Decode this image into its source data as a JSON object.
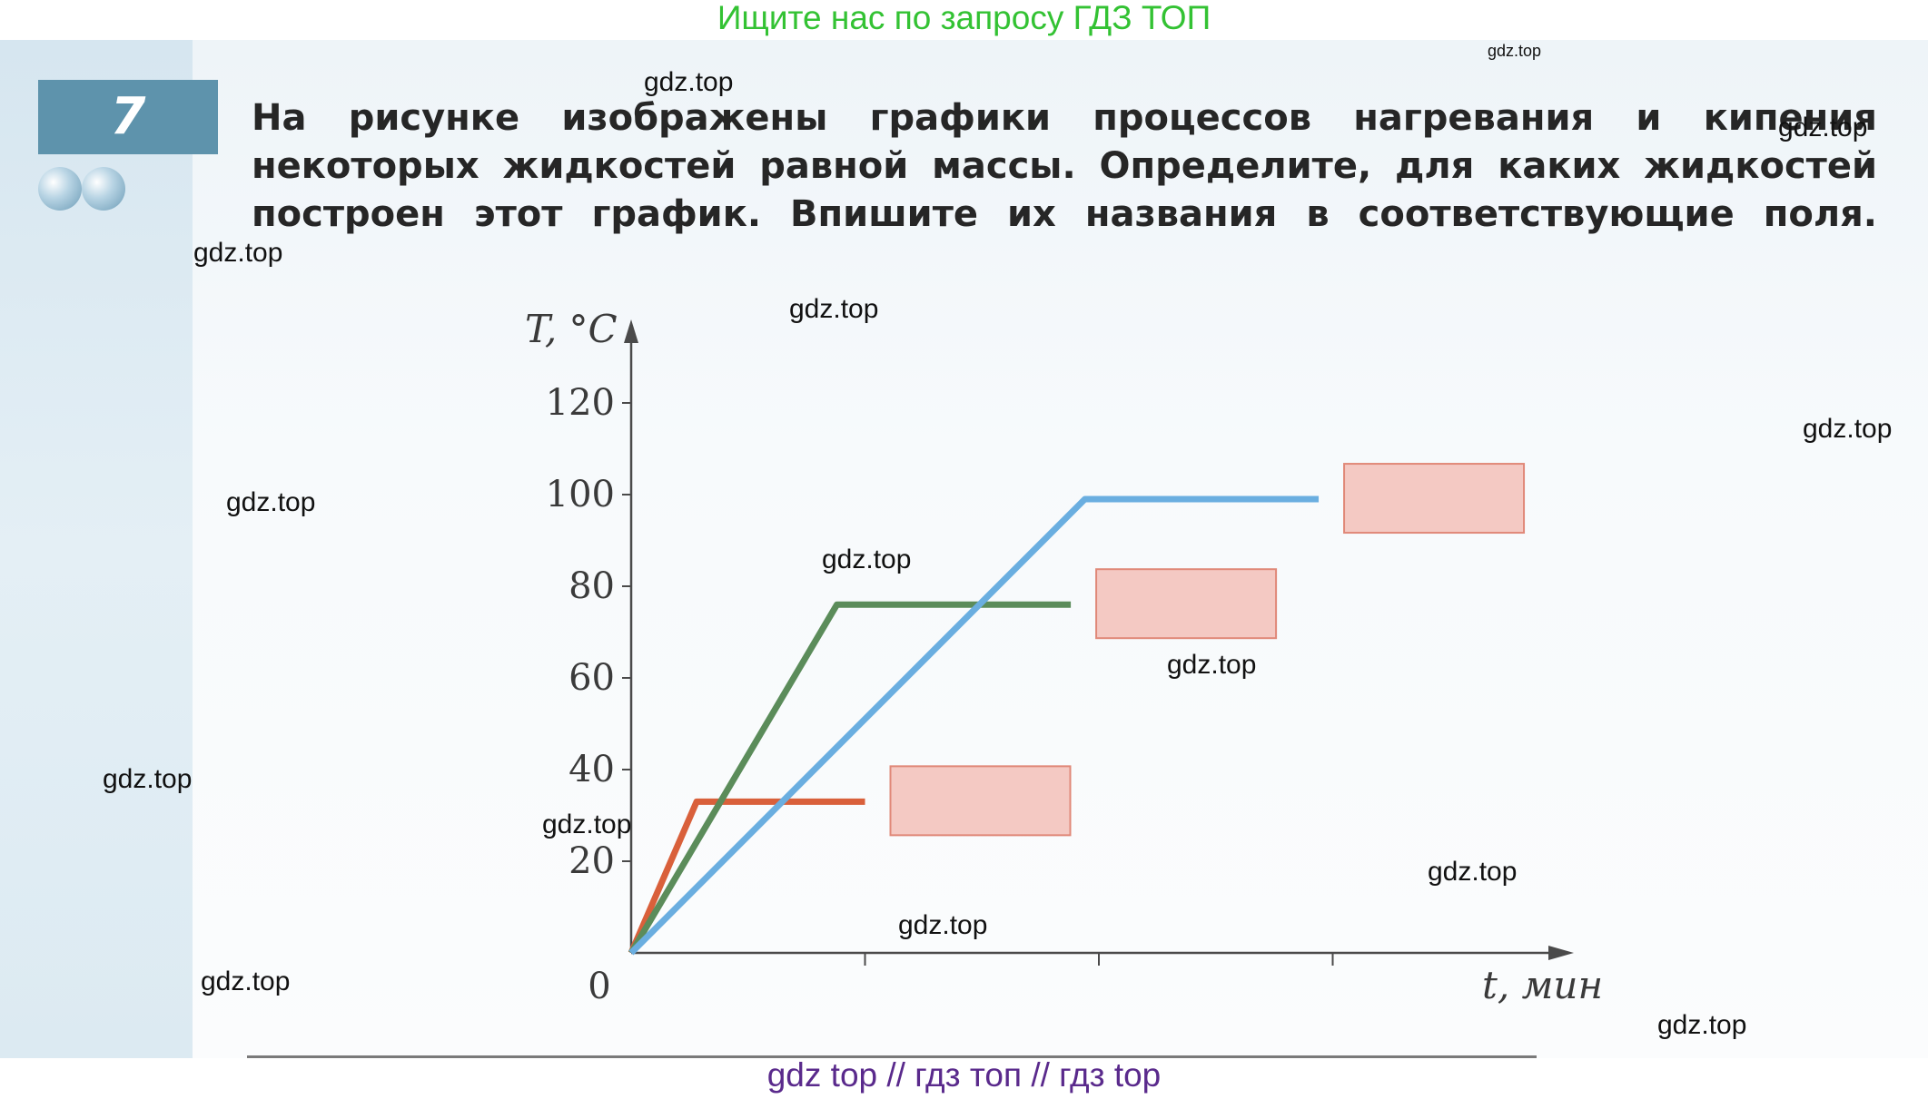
{
  "banner": {
    "text": "Ищите нас по запросу ГДЗ ТОП"
  },
  "task": {
    "number": "7",
    "text": "На рисунке изображены графики процессов нагревания и кипения некоторых жидкостей равной массы. Определите, для каких жидкостей построен этот график. Впишите их названия в соответствующие поля."
  },
  "watermarks": [
    "gdz.top",
    "gdz.top",
    "gdz.top",
    "gdz.top",
    "gdz.top",
    "gdz.top",
    "gdz.top",
    "gdz.top",
    "gdz.top",
    "gdz.top",
    "gdz.top",
    "gdz.top",
    "gdz.top",
    "gdz.top",
    "gdz.top",
    "gdz.top"
  ],
  "footer": {
    "text": "gdz top  //  гдз топ  //  гдз top"
  },
  "chart_data": {
    "type": "line",
    "title": "",
    "ylabel": "T, °C",
    "xlabel": "t, мин",
    "ylim": [
      0,
      135
    ],
    "xlim": [
      0,
      20
    ],
    "y_ticks": [
      20,
      40,
      60,
      80,
      100,
      120
    ],
    "origin_label": "0",
    "x_tick_positions": [
      5,
      10,
      15
    ],
    "x_tick_labels": [],
    "grid": false,
    "series": [
      {
        "color": "#d9603b",
        "x": [
          0,
          1.4,
          5
        ],
        "y": [
          0,
          33,
          33
        ]
      },
      {
        "color": "#5b8c5a",
        "x": [
          0,
          4.4,
          9.4
        ],
        "y": [
          0,
          76,
          76
        ]
      },
      {
        "color": "#6aaee0",
        "x": [
          0,
          9.7,
          14.7
        ],
        "y": [
          0,
          99,
          99
        ]
      }
    ],
    "answer_boxes": [
      {
        "series_index": 0,
        "text": ""
      },
      {
        "series_index": 1,
        "text": ""
      },
      {
        "series_index": 2,
        "text": ""
      }
    ]
  }
}
